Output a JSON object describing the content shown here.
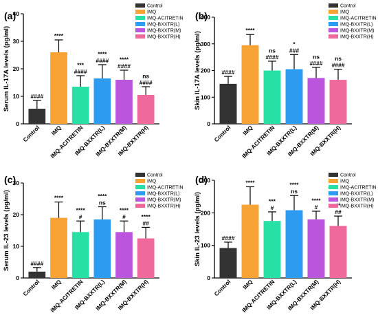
{
  "chart_data": [
    {
      "type": "bar",
      "panel_label": "(a)",
      "ylabel": "Serum IL-17A levels (pg/ml)",
      "ylim": [
        0,
        40
      ],
      "yticks": [
        0,
        10,
        20,
        30,
        40
      ],
      "categories": [
        "Control",
        "IMQ",
        "IMQ-ACITRETIN",
        "IMQ-BXXTR(L)",
        "IMQ-BXXTR(M)",
        "IMQ-BXXTR(H)"
      ],
      "values": [
        5.5,
        26,
        13.5,
        16.5,
        16,
        10.5
      ],
      "errors": [
        3,
        4.5,
        4,
        5,
        3.5,
        3
      ],
      "annotations": [
        [
          "####"
        ],
        [
          "****"
        ],
        [
          "***",
          "####"
        ],
        [
          "****",
          "####"
        ],
        [
          "****",
          "####"
        ],
        [
          "ns",
          "####"
        ]
      ],
      "legend": [
        "Control",
        "IMQ",
        "IMQ-ACITRETIN",
        "IMQ-BXXTR(L)",
        "IMQ-BXXTR(M)",
        "IMQ-BXXTR(H)"
      ],
      "legend_position": "top-right"
    },
    {
      "type": "bar",
      "panel_label": "(b)",
      "ylabel": "Skin IL-17A levels (pg/ml)",
      "ylim": [
        0,
        400
      ],
      "yticks": [
        0,
        100,
        200,
        300,
        400
      ],
      "categories": [
        "Control",
        "IMQ",
        "IMQ-ACITRETIN",
        "IMQ-BXXTR(L)",
        "IMQ-BXXTR(M)",
        "IMQ-BXXTR(H)"
      ],
      "values": [
        150,
        295,
        200,
        205,
        172,
        165
      ],
      "errors": [
        28,
        40,
        35,
        55,
        40,
        40
      ],
      "annotations": [
        [
          "####"
        ],
        [
          "****"
        ],
        [
          "ns",
          "####"
        ],
        [
          "*",
          "###"
        ],
        [
          "ns",
          "####"
        ],
        [
          "ns",
          "####"
        ]
      ],
      "legend": [
        "Control",
        "IMQ",
        "IMQ-ACITRETIN",
        "IMQ-BXXTR(L)",
        "IMQ-BXXTR(M)",
        "IMQ-BXXTR(H)"
      ],
      "legend_position": "top-right"
    },
    {
      "type": "bar",
      "panel_label": "(c)",
      "ylabel": "Serum IL-23 levels (pg/ml)",
      "ylim": [
        0,
        30
      ],
      "yticks": [
        0,
        10,
        20,
        30
      ],
      "categories": [
        "Control",
        "IMQ",
        "IMQ-ACITRETIN",
        "IMQ-BXXTR(L)",
        "IMQ-BXXTR(M)",
        "IMQ-BXXTR(H)"
      ],
      "values": [
        2,
        19,
        14.5,
        18.5,
        14.5,
        12.5
      ],
      "errors": [
        1.3,
        5,
        3.5,
        4,
        3.5,
        3.5
      ],
      "annotations": [
        [
          "####"
        ],
        [
          "****"
        ],
        [
          "****",
          "#"
        ],
        [
          "****",
          "ns"
        ],
        [
          "****",
          "#"
        ],
        [
          "****",
          "##"
        ]
      ],
      "legend": [
        "Control",
        "IMQ",
        "IMQ-ACITRETIN",
        "IMQ-BXXTR(L)",
        "IMQ-BXXTR(M)",
        "IMQ-BXXTR(H)"
      ],
      "legend_position": "top-right"
    },
    {
      "type": "bar",
      "panel_label": "(d)",
      "ylabel": "Skin IL-23 levels (pg/ml)",
      "ylim": [
        0,
        300
      ],
      "yticks": [
        0,
        100,
        200,
        300
      ],
      "categories": [
        "Control",
        "IMQ",
        "IMQ-ACITRETIN",
        "IMQ-BXXTR(L)",
        "IMQ-BXXTR(M)",
        "IMQ-BXXTR(H)"
      ],
      "values": [
        92,
        225,
        175,
        208,
        180,
        160
      ],
      "errors": [
        18,
        55,
        28,
        45,
        25,
        30
      ],
      "annotations": [
        [
          "####"
        ],
        [
          "****"
        ],
        [
          "***",
          "#"
        ],
        [
          "****",
          "ns"
        ],
        [
          "****",
          "#"
        ],
        [
          "**",
          "##"
        ]
      ],
      "legend": [
        "Control",
        "IMQ",
        "IMQ-ACITRETIN",
        "IMQ-BXXTR(L)",
        "IMQ-BXXTR(M)",
        "IMQ-BXXTR(H)"
      ],
      "legend_position": "top-right"
    }
  ],
  "colors": [
    "#333333",
    "#f7a234",
    "#27e0a6",
    "#2d9cf0",
    "#bb55dd",
    "#f0699d"
  ]
}
